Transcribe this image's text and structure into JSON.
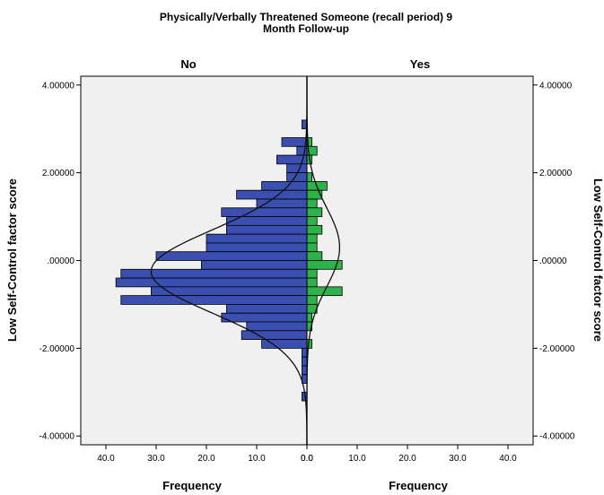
{
  "chart_data": {
    "type": "bar",
    "orientation": "horizontal",
    "layout": "population-pyramid",
    "title_lines": [
      "Physically/Verbally Threatened Someone (recall period) 9",
      "Month Follow-up"
    ],
    "panels": [
      {
        "name": "No",
        "side": "left",
        "color": "#3b4fb0"
      },
      {
        "name": "Yes",
        "side": "right",
        "color": "#2db34a"
      }
    ],
    "xlabel": "Frequency",
    "ylabel": "Low Self-Control factor score",
    "ylim": [
      -4.2,
      4.2
    ],
    "y_ticks": [
      4,
      2,
      0,
      -2,
      -4
    ],
    "y_tick_labels": [
      "4.00000",
      "2.00000",
      ".00000",
      "-2.00000",
      "-4.00000"
    ],
    "x_ticks": [
      40,
      30,
      20,
      10,
      0
    ],
    "x_tick_labels": [
      "40.0",
      "30.0",
      "20.0",
      "10.0",
      "0.0"
    ],
    "x_ticks_right_labels": [
      "0.0",
      "10.0",
      "20.0",
      "30.0",
      "40.0"
    ],
    "xlim": [
      0,
      41.5
    ],
    "bin_width": 0.2,
    "bins": [
      {
        "y_low": 3.0,
        "y_high": 3.2,
        "no": 1,
        "yes": 0
      },
      {
        "y_low": 2.6,
        "y_high": 2.8,
        "no": 5,
        "yes": 1
      },
      {
        "y_low": 2.4,
        "y_high": 2.6,
        "no": 2,
        "yes": 2
      },
      {
        "y_low": 2.2,
        "y_high": 2.4,
        "no": 6,
        "yes": 1
      },
      {
        "y_low": 2.0,
        "y_high": 2.2,
        "no": 4,
        "yes": 0
      },
      {
        "y_low": 1.8,
        "y_high": 2.0,
        "no": 4,
        "yes": 1
      },
      {
        "y_low": 1.6,
        "y_high": 1.8,
        "no": 9,
        "yes": 4
      },
      {
        "y_low": 1.4,
        "y_high": 1.6,
        "no": 14,
        "yes": 3
      },
      {
        "y_low": 1.2,
        "y_high": 1.4,
        "no": 10,
        "yes": 2
      },
      {
        "y_low": 1.0,
        "y_high": 1.2,
        "no": 17,
        "yes": 3
      },
      {
        "y_low": 0.8,
        "y_high": 1.0,
        "no": 16,
        "yes": 2
      },
      {
        "y_low": 0.6,
        "y_high": 0.8,
        "no": 16,
        "yes": 3
      },
      {
        "y_low": 0.4,
        "y_high": 0.6,
        "no": 20,
        "yes": 2
      },
      {
        "y_low": 0.2,
        "y_high": 0.4,
        "no": 20,
        "yes": 2
      },
      {
        "y_low": 0.0,
        "y_high": 0.2,
        "no": 30,
        "yes": 3
      },
      {
        "y_low": -0.2,
        "y_high": 0.0,
        "no": 21,
        "yes": 7
      },
      {
        "y_low": -0.4,
        "y_high": -0.2,
        "no": 37,
        "yes": 2
      },
      {
        "y_low": -0.6,
        "y_high": -0.4,
        "no": 38,
        "yes": 2
      },
      {
        "y_low": -0.8,
        "y_high": -0.6,
        "no": 31,
        "yes": 7
      },
      {
        "y_low": -1.0,
        "y_high": -0.8,
        "no": 37,
        "yes": 2
      },
      {
        "y_low": -1.2,
        "y_high": -1.0,
        "no": 16,
        "yes": 2
      },
      {
        "y_low": -1.4,
        "y_high": -1.2,
        "no": 17,
        "yes": 1
      },
      {
        "y_low": -1.6,
        "y_high": -1.4,
        "no": 12,
        "yes": 1
      },
      {
        "y_low": -1.8,
        "y_high": -1.6,
        "no": 13,
        "yes": 0
      },
      {
        "y_low": -2.0,
        "y_high": -1.8,
        "no": 9,
        "yes": 1
      },
      {
        "y_low": -2.2,
        "y_high": -2.0,
        "no": 1,
        "yes": 0
      },
      {
        "y_low": -2.4,
        "y_high": -2.2,
        "no": 1,
        "yes": 0
      },
      {
        "y_low": -2.6,
        "y_high": -2.4,
        "no": 1,
        "yes": 0
      },
      {
        "y_low": -2.8,
        "y_high": -2.6,
        "no": 1,
        "yes": 0
      },
      {
        "y_low": -3.2,
        "y_high": -3.0,
        "no": 1,
        "yes": 0
      }
    ],
    "normal_curves": [
      {
        "panel": "No",
        "mean": -0.25,
        "sd": 0.95,
        "peak_frequency": 31
      },
      {
        "panel": "Yes",
        "mean": 0.3,
        "sd": 0.9,
        "peak_frequency": 6.5
      }
    ],
    "grid": false,
    "background_color": "#f0f0f0",
    "bar_edge_color": "#000000"
  }
}
